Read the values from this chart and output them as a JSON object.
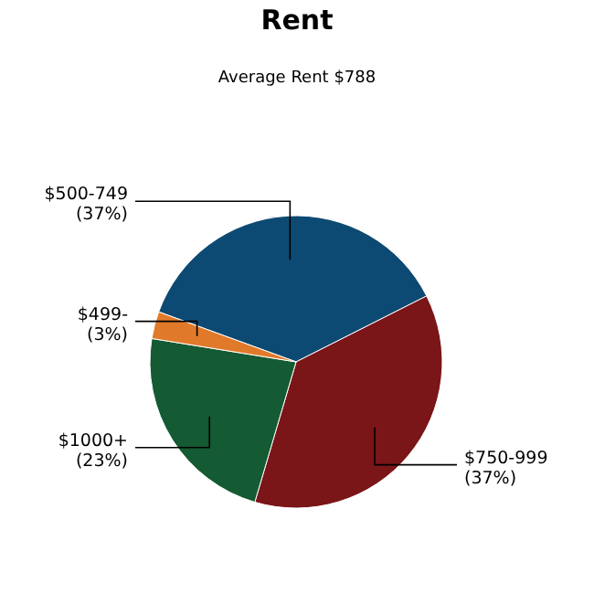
{
  "chart_data": {
    "type": "pie",
    "title": "Rent",
    "subtitle": "Average Rent  $788",
    "categories": [
      "$500-749",
      "$750-999",
      "$1000+",
      "$499-"
    ],
    "values": [
      37,
      37,
      23,
      3
    ],
    "colors": [
      "#0d4a73",
      "#7a1518",
      "#145a32",
      "#e07a2a"
    ],
    "value_labels": [
      "(37%)",
      "(37%)",
      "(23%)",
      "(3%)"
    ]
  }
}
